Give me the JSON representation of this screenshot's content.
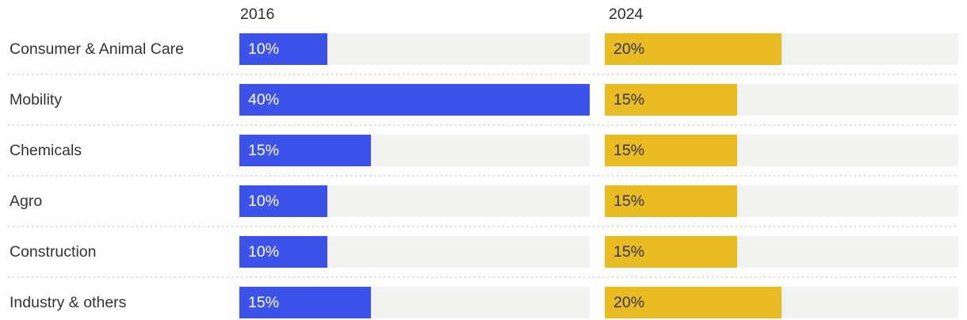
{
  "chart_data": {
    "type": "bar",
    "orientation": "horizontal",
    "title": "",
    "categories": [
      "Consumer & Animal Care",
      "Mobility",
      "Chemicals",
      "Agro",
      "Construction",
      "Industry & others"
    ],
    "series": [
      {
        "name": "2016",
        "color": "#3d52e8",
        "text_color": "#ffffff",
        "values": [
          10,
          40,
          15,
          10,
          10,
          15
        ],
        "labels": [
          "10%",
          "40%",
          "15%",
          "10%",
          "10%",
          "15%"
        ]
      },
      {
        "name": "2024",
        "color": "#e8bc22",
        "text_color": "#333333",
        "values": [
          20,
          15,
          15,
          15,
          15,
          20
        ],
        "labels": [
          "20%",
          "15%",
          "15%",
          "15%",
          "15%",
          "20%"
        ]
      }
    ],
    "xlim": [
      0,
      40
    ],
    "track_color": "#f3f3f2",
    "separator_color": "#d9d9d9",
    "legend_position": "top",
    "grid": false
  }
}
